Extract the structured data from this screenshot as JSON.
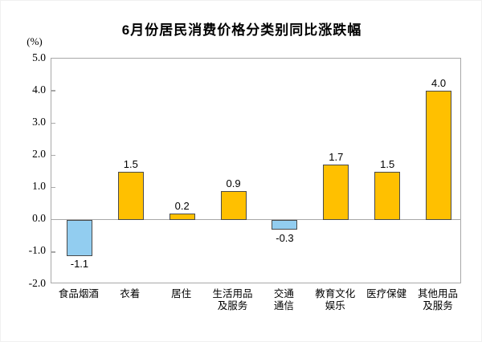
{
  "chart_data": {
    "type": "bar",
    "title": "6月份居民消费价格分类别同比涨跌幅",
    "unit_label": "(%)",
    "categories": [
      "食品烟酒",
      "衣着",
      "居住",
      "生活用品\n及服务",
      "交通\n通信",
      "教育文化\n娱乐",
      "医疗保健",
      "其他用品\n及服务"
    ],
    "values": [
      -1.1,
      1.5,
      0.2,
      0.9,
      -0.3,
      1.7,
      1.5,
      4.0
    ],
    "value_labels": [
      "-1.1",
      "1.5",
      "0.2",
      "0.9",
      "-0.3",
      "1.7",
      "1.5",
      "4.0"
    ],
    "ylim": [
      -2.0,
      5.0
    ],
    "ytick_step": 1.0,
    "yticks": [
      "5.0",
      "4.0",
      "3.0",
      "2.0",
      "1.0",
      "0.0",
      "-1.0",
      "-2.0"
    ],
    "grid": "off",
    "legend": "none",
    "colors": {
      "positive_bar": "#FFC000",
      "negative_bar": "#92CDF0",
      "bar_border": "#4a4a4a",
      "axis_line": "#a8a8a8",
      "text": "#000000"
    }
  }
}
